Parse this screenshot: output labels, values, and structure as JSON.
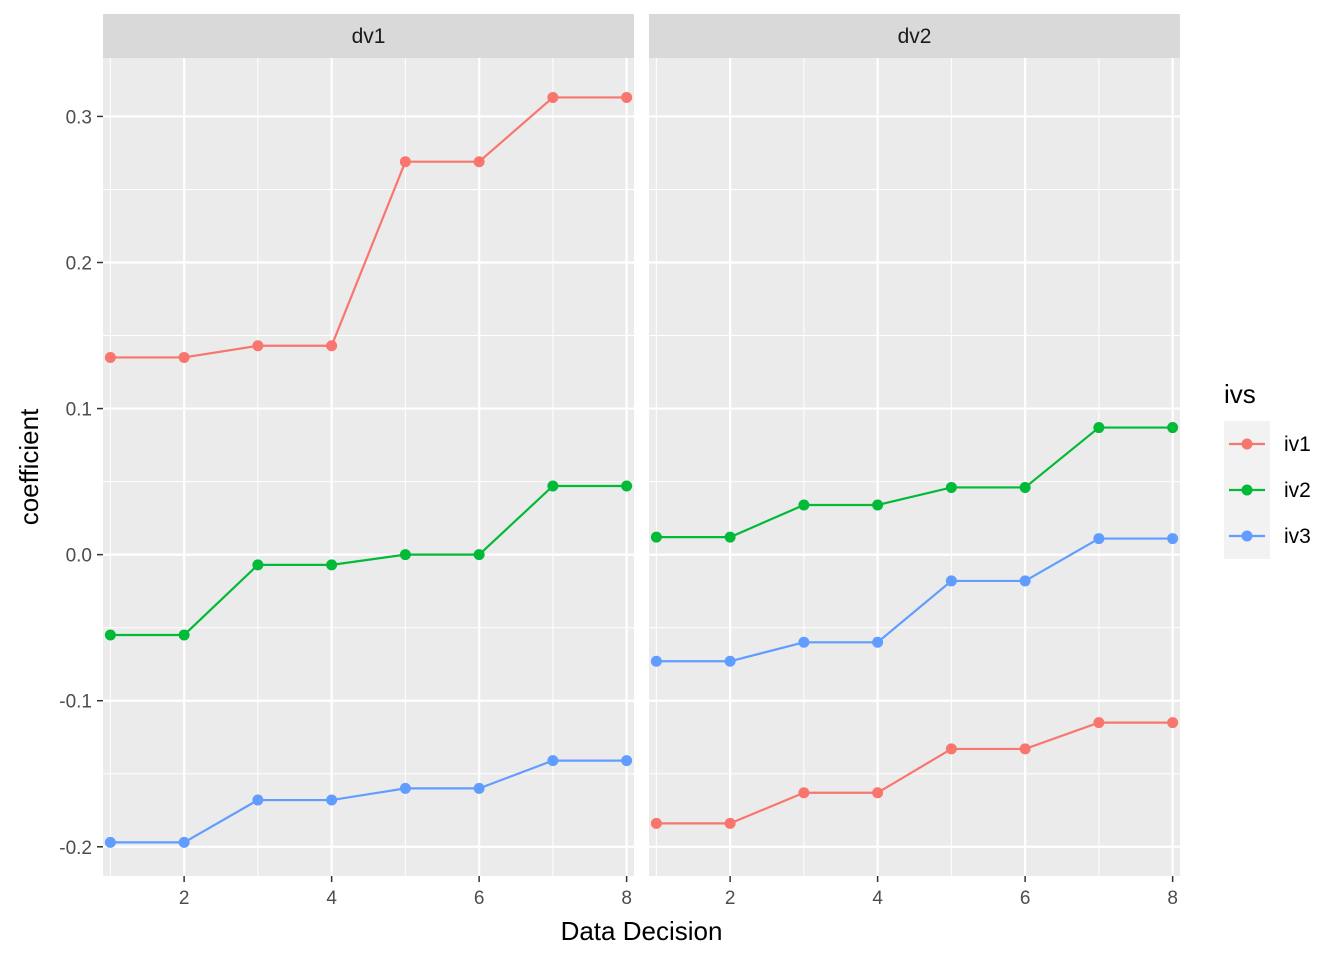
{
  "chart_data": {
    "type": "line",
    "facet_by": "dv",
    "xlabel": "Data Decision",
    "ylabel": "coefficient",
    "xlim": [
      0.9,
      8.1
    ],
    "ylim": [
      -0.22,
      0.34
    ],
    "x_ticks": [
      2,
      4,
      6,
      8
    ],
    "y_ticks": [
      -0.2,
      -0.1,
      0.0,
      0.1,
      0.2,
      0.3
    ],
    "y_tick_labels": [
      "-0.2",
      "-0.1",
      "0.0",
      "0.1",
      "0.2",
      "0.3"
    ],
    "grid": true,
    "legend": {
      "title": "ivs",
      "position": "right",
      "entries": [
        "iv1",
        "iv2",
        "iv3"
      ]
    },
    "colors": {
      "iv1": "#F8766D",
      "iv2": "#00BA38",
      "iv3": "#619CFF"
    },
    "x": [
      1,
      2,
      3,
      4,
      5,
      6,
      7,
      8
    ],
    "panels": [
      {
        "title": "dv1",
        "series": [
          {
            "name": "iv1",
            "values": [
              0.135,
              0.135,
              0.143,
              0.143,
              0.269,
              0.269,
              0.313,
              0.313
            ]
          },
          {
            "name": "iv2",
            "values": [
              -0.055,
              -0.055,
              -0.007,
              -0.007,
              0.0,
              0.0,
              0.047,
              0.047
            ]
          },
          {
            "name": "iv3",
            "values": [
              -0.197,
              -0.197,
              -0.168,
              -0.168,
              -0.16,
              -0.16,
              -0.141,
              -0.141
            ]
          }
        ]
      },
      {
        "title": "dv2",
        "series": [
          {
            "name": "iv1",
            "values": [
              -0.184,
              -0.184,
              -0.163,
              -0.163,
              -0.133,
              -0.133,
              -0.115,
              -0.115
            ]
          },
          {
            "name": "iv2",
            "values": [
              0.012,
              0.012,
              0.034,
              0.034,
              0.046,
              0.046,
              0.087,
              0.087
            ]
          },
          {
            "name": "iv3",
            "values": [
              -0.073,
              -0.073,
              -0.06,
              -0.06,
              -0.018,
              -0.018,
              0.011,
              0.011
            ]
          }
        ]
      }
    ]
  }
}
